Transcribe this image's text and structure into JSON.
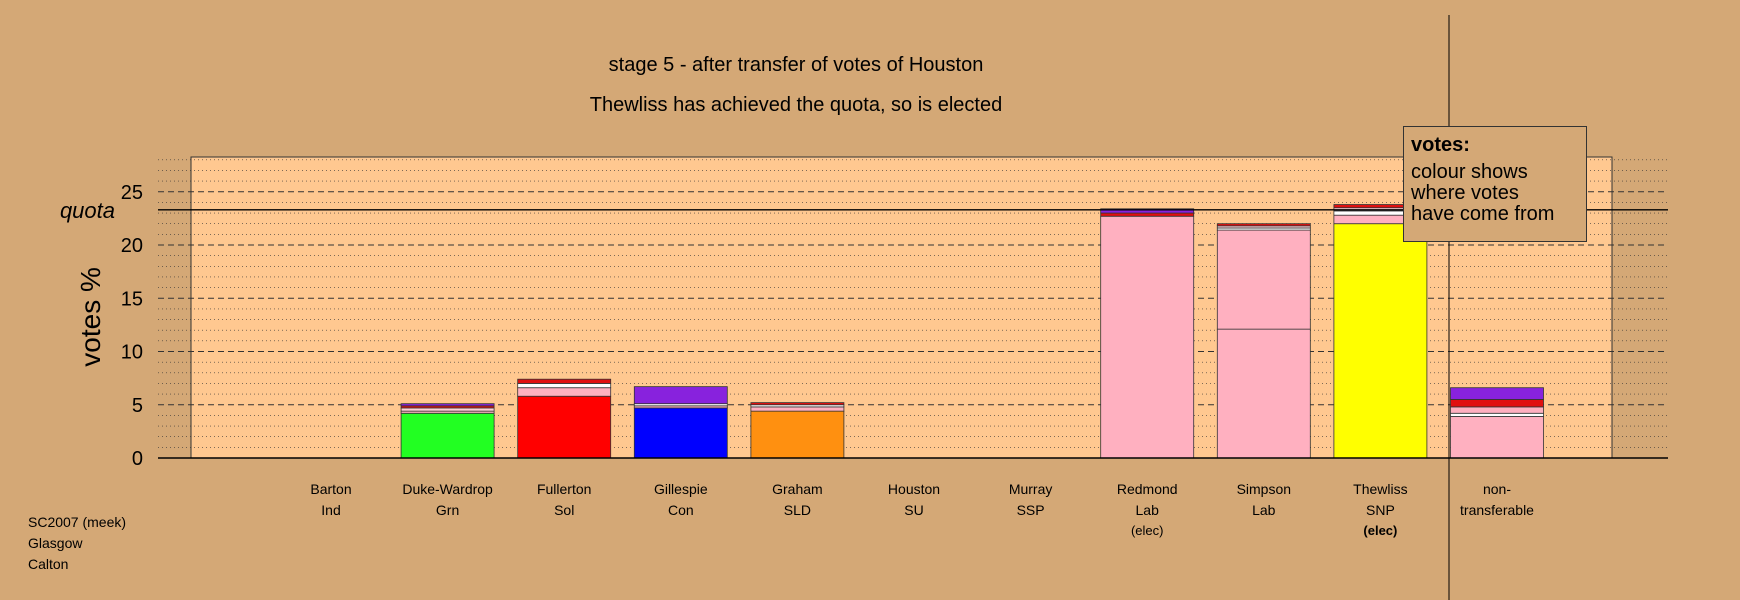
{
  "chart_data": {
    "type": "bar",
    "stacked": true,
    "title": "stage 5 - after transfer of votes of Houston",
    "subtitle": "Thewliss has achieved the quota, so is elected",
    "ylabel": "votes %",
    "ylim": [
      0,
      28
    ],
    "yticks": [
      0,
      5,
      10,
      15,
      20,
      25
    ],
    "quota": 23.3,
    "quota_label": "quota",
    "categories": [
      {
        "name": "Barton",
        "party": "Ind",
        "note": ""
      },
      {
        "name": "Duke-Wardrop",
        "party": "Grn",
        "note": ""
      },
      {
        "name": "Fullerton",
        "party": "Sol",
        "note": ""
      },
      {
        "name": "Gillespie",
        "party": "Con",
        "note": ""
      },
      {
        "name": "Graham",
        "party": "SLD",
        "note": ""
      },
      {
        "name": "Houston",
        "party": "SU",
        "note": ""
      },
      {
        "name": "Murray",
        "party": "SSP",
        "note": ""
      },
      {
        "name": "Redmond",
        "party": "Lab",
        "note": "(elec)"
      },
      {
        "name": "Simpson",
        "party": "Lab",
        "note": ""
      },
      {
        "name": "Thewliss",
        "party": "SNP",
        "note": "(elec)"
      },
      {
        "name": "non-",
        "party": "transferable",
        "note": ""
      }
    ],
    "stacks": [
      [],
      [
        {
          "v": 4.2,
          "c": "#22ff22"
        },
        {
          "v": 0.2,
          "c": "#ffb0c0"
        },
        {
          "v": 0.3,
          "c": "#ffd0d8"
        },
        {
          "v": 0.2,
          "c": "#e01010"
        },
        {
          "v": 0.2,
          "c": "#8822dd"
        }
      ],
      [
        {
          "v": 5.8,
          "c": "#ff0000"
        },
        {
          "v": 0.8,
          "c": "#ffb0c0"
        },
        {
          "v": 0.4,
          "c": "#ffffff"
        },
        {
          "v": 0.4,
          "c": "#e01010"
        }
      ],
      [
        {
          "v": 4.7,
          "c": "#0000ff"
        },
        {
          "v": 0.2,
          "c": "#ffb0c0"
        },
        {
          "v": 0.2,
          "c": "#ffffff"
        },
        {
          "v": 1.6,
          "c": "#8822dd"
        }
      ],
      [
        {
          "v": 4.4,
          "c": "#ff9010"
        },
        {
          "v": 0.4,
          "c": "#ffb0c0"
        },
        {
          "v": 0.2,
          "c": "#ffffff"
        },
        {
          "v": 0.2,
          "c": "#e01010"
        }
      ],
      [],
      [],
      [
        {
          "v": 22.7,
          "c": "#ffb0c0"
        },
        {
          "v": 0.3,
          "c": "#e01010"
        },
        {
          "v": 0.4,
          "c": "#8822dd"
        }
      ],
      [
        {
          "v": 12.1,
          "c": "#ffb0c0"
        },
        {
          "v": 9.3,
          "c": "#ffb0c0"
        },
        {
          "v": 0.2,
          "c": "#ffffff"
        },
        {
          "v": 0.2,
          "c": "#ffd0d8"
        },
        {
          "v": 0.2,
          "c": "#e01010"
        }
      ],
      [
        {
          "v": 22.0,
          "c": "#ffff00"
        },
        {
          "v": 0.8,
          "c": "#ffb0c0"
        },
        {
          "v": 0.4,
          "c": "#ffffff"
        },
        {
          "v": 0.3,
          "c": "#ffd0d8"
        },
        {
          "v": 0.3,
          "c": "#e01010"
        }
      ],
      [
        {
          "v": 3.9,
          "c": "#ffb0c0"
        },
        {
          "v": 0.3,
          "c": "#ffffff"
        },
        {
          "v": 0.6,
          "c": "#ffb0c0"
        },
        {
          "v": 0.7,
          "c": "#e01010"
        },
        {
          "v": 1.1,
          "c": "#8822dd"
        }
      ]
    ],
    "grid": true,
    "colors": {
      "background": "#d4a876",
      "plot_background": "#ffc890"
    }
  },
  "legend": {
    "title": "votes:",
    "body": "colour shows\nwhere votes\nhave come from"
  },
  "source": "SC2007 (meek)\nGlasgow\nCalton"
}
